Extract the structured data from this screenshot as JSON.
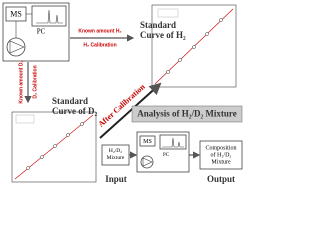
{
  "top_instrument": {
    "ms": "MS",
    "pc": "PC"
  },
  "h2_arrow": {
    "above": "Known amount H₂",
    "below": "H₂ Calibration"
  },
  "h2_curve": {
    "title_line1": "Standard",
    "title_line2": "Curve of H₂"
  },
  "d2_arrow": {
    "left": "Known amount D₂",
    "right": "D₂ Calibration"
  },
  "d2_curve": {
    "title_line1": "Standard",
    "title_line2": "Curve of D₂"
  },
  "after_calibration": "After Calibration",
  "analysis": {
    "title": "Analysis of H₂/D₂ Mixture",
    "input_box": "H₂/D₂ Mixture",
    "ms": "MS",
    "pc": "PC",
    "output_box_line1": "Composition",
    "output_box_line2": "of H₂/D₂",
    "output_box_line3": "Mixture",
    "input_label": "Input",
    "output_label": "Output"
  }
}
